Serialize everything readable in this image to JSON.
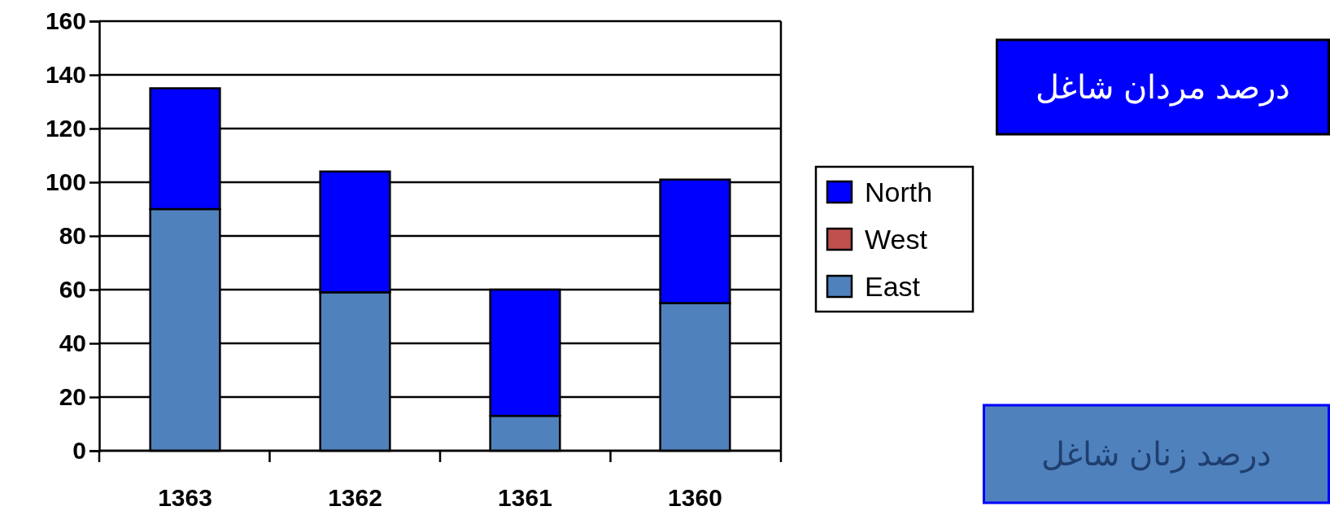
{
  "chart_data": {
    "type": "bar",
    "stacked": true,
    "categories": [
      "1363",
      "1362",
      "1361",
      "1360"
    ],
    "series": [
      {
        "name": "East",
        "color": "#4f81bd",
        "values": [
          90,
          59,
          13,
          55
        ]
      },
      {
        "name": "West",
        "color": "#c0504d",
        "values": [
          0,
          0,
          0,
          0
        ]
      },
      {
        "name": "North",
        "color": "#0000ff",
        "values": [
          45,
          45,
          47,
          46
        ]
      }
    ],
    "ylim": [
      0,
      160
    ],
    "yticks": [
      0,
      20,
      40,
      60,
      80,
      100,
      120,
      140,
      160
    ],
    "grid": "y",
    "legend": "right",
    "annotations": [
      "درصد مردان شاغل",
      "درصد زنان شاغل"
    ]
  }
}
